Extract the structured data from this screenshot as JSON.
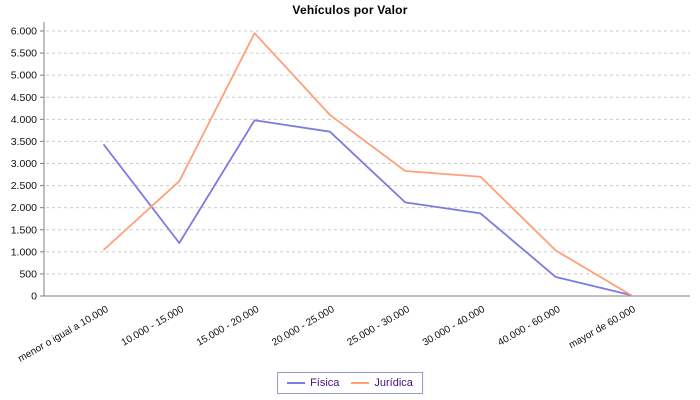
{
  "chart_data": {
    "type": "line",
    "title": "Vehículos por Valor",
    "categories": [
      "menor o igual a 10.000",
      "10.000 - 15.000",
      "15.000 - 20.000",
      "20.000 - 25.000",
      "25.000 - 30.000",
      "30.000 - 40.000",
      "40.000 - 60.000",
      "mayor de 60.000"
    ],
    "series": [
      {
        "name": "Física",
        "color": "#7b7be0",
        "values": [
          3420,
          1200,
          3980,
          3720,
          2120,
          1870,
          430,
          20
        ]
      },
      {
        "name": "Jurídica",
        "color": "#ffa078",
        "values": [
          1050,
          2600,
          5950,
          4100,
          2830,
          2700,
          1030,
          20
        ]
      }
    ],
    "ylim": [
      0,
      6000
    ],
    "ytick_step": 500,
    "ytick_labels": [
      "0",
      "500",
      "1.000",
      "1.500",
      "2.000",
      "2.500",
      "3.000",
      "3.500",
      "4.000",
      "4.500",
      "5.000",
      "5.500",
      "6.000"
    ],
    "grid": "horizontal-dashed",
    "legend_position": "bottom-center"
  },
  "colors": {
    "axis": "#808080",
    "grid": "#cccccc",
    "tick_label": "#111111",
    "title": "#000000",
    "legend_border": "#9999cc",
    "legend_text": "#42127d",
    "background": "#ffffff"
  }
}
